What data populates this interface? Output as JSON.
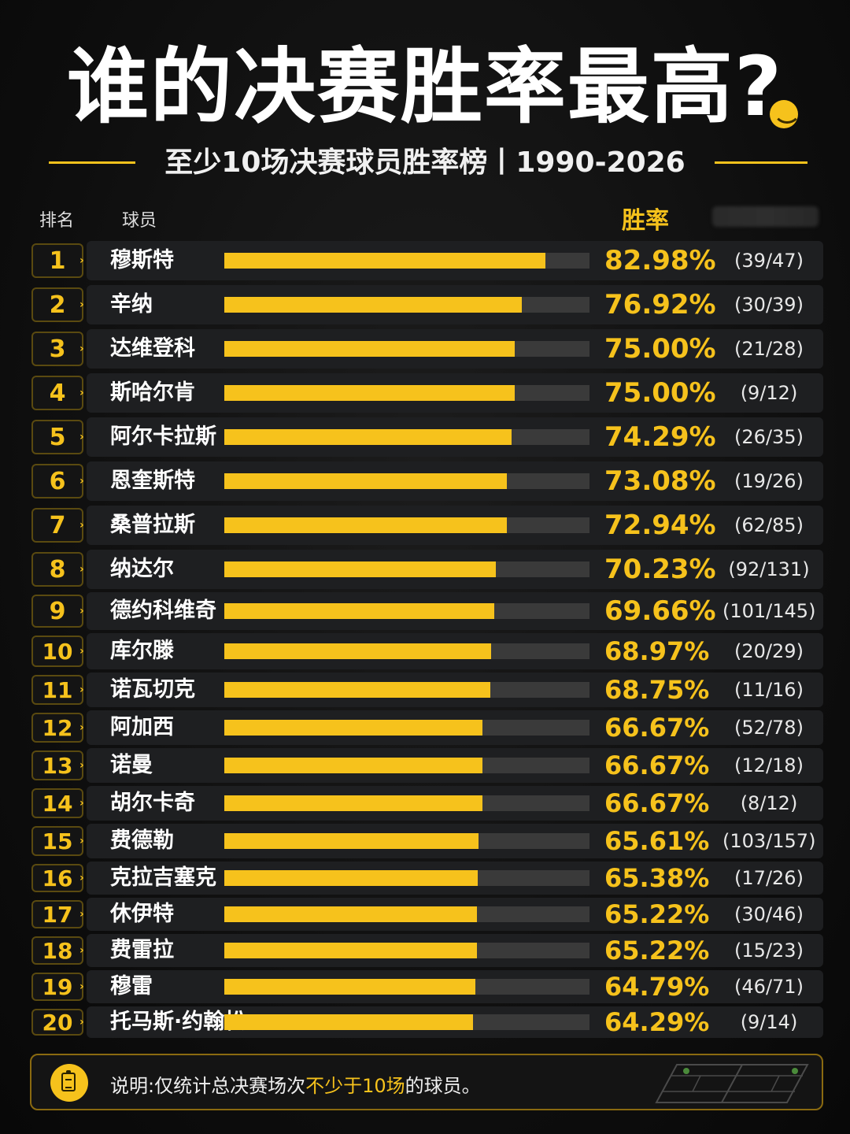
{
  "title": "谁的决赛胜率最高",
  "title_mark": "?",
  "subtitle": "至少10场决赛球员胜率榜丨1990-2026",
  "columns": {
    "rank": "排名",
    "player": "球员",
    "rate": "胜率"
  },
  "colors": {
    "accent": "#f6c21c",
    "track": "#3a3a3a",
    "background": "#0d0d0d"
  },
  "chart_data": {
    "type": "bar",
    "orientation": "horizontal",
    "title": "谁的决赛胜率最高?",
    "subtitle": "至少10场决赛球员胜率榜丨1990-2026",
    "xlim": [
      0,
      100
    ],
    "rows": [
      {
        "rank": "1",
        "name": "穆斯特",
        "rate": 82.98,
        "rate_label": "82.98%",
        "record": "(39/47)"
      },
      {
        "rank": "2",
        "name": "辛纳",
        "rate": 76.92,
        "rate_label": "76.92%",
        "record": "(30/39)"
      },
      {
        "rank": "3",
        "name": "达维登科",
        "rate": 75.0,
        "rate_label": "75.00%",
        "record": "(21/28)"
      },
      {
        "rank": "4",
        "name": "斯哈尔肯",
        "rate": 75.0,
        "rate_label": "75.00%",
        "record": "(9/12)"
      },
      {
        "rank": "5",
        "name": "阿尔卡拉斯",
        "rate": 74.29,
        "rate_label": "74.29%",
        "record": "(26/35)"
      },
      {
        "rank": "6",
        "name": "恩奎斯特",
        "rate": 73.08,
        "rate_label": "73.08%",
        "record": "(19/26)"
      },
      {
        "rank": "7",
        "name": "桑普拉斯",
        "rate": 72.94,
        "rate_label": "72.94%",
        "record": "(62/85)"
      },
      {
        "rank": "8",
        "name": "纳达尔",
        "rate": 70.23,
        "rate_label": "70.23%",
        "record": "(92/131)"
      },
      {
        "rank": "9",
        "name": "德约科维奇",
        "rate": 69.66,
        "rate_label": "69.66%",
        "record": "(101/145)"
      },
      {
        "rank": "10",
        "name": "库尔滕",
        "rate": 68.97,
        "rate_label": "68.97%",
        "record": "(20/29)"
      },
      {
        "rank": "11",
        "name": "诺瓦切克",
        "rate": 68.75,
        "rate_label": "68.75%",
        "record": "(11/16)"
      },
      {
        "rank": "12",
        "name": "阿加西",
        "rate": 66.67,
        "rate_label": "66.67%",
        "record": "(52/78)"
      },
      {
        "rank": "13",
        "name": "诺曼",
        "rate": 66.67,
        "rate_label": "66.67%",
        "record": "(12/18)"
      },
      {
        "rank": "14",
        "name": "胡尔卡奇",
        "rate": 66.67,
        "rate_label": "66.67%",
        "record": "(8/12)"
      },
      {
        "rank": "15",
        "name": "费德勒",
        "rate": 65.61,
        "rate_label": "65.61%",
        "record": "(103/157)"
      },
      {
        "rank": "16",
        "name": "克拉吉塞克",
        "rate": 65.38,
        "rate_label": "65.38%",
        "record": "(17/26)"
      },
      {
        "rank": "17",
        "name": "休伊特",
        "rate": 65.22,
        "rate_label": "65.22%",
        "record": "(30/46)"
      },
      {
        "rank": "18",
        "name": "费雷拉",
        "rate": 65.22,
        "rate_label": "65.22%",
        "record": "(15/23)"
      },
      {
        "rank": "19",
        "name": "穆雷",
        "rate": 64.79,
        "rate_label": "64.79%",
        "record": "(46/71)"
      },
      {
        "rank": "20",
        "name": "托马斯·约翰松",
        "rate": 64.29,
        "rate_label": "64.29%",
        "record": "(9/14)"
      }
    ]
  },
  "note": {
    "icon": "clipboard-icon",
    "prefix": "说明:仅统计总决赛场次",
    "highlight": "不少于10场",
    "suffix": "的球员。"
  }
}
